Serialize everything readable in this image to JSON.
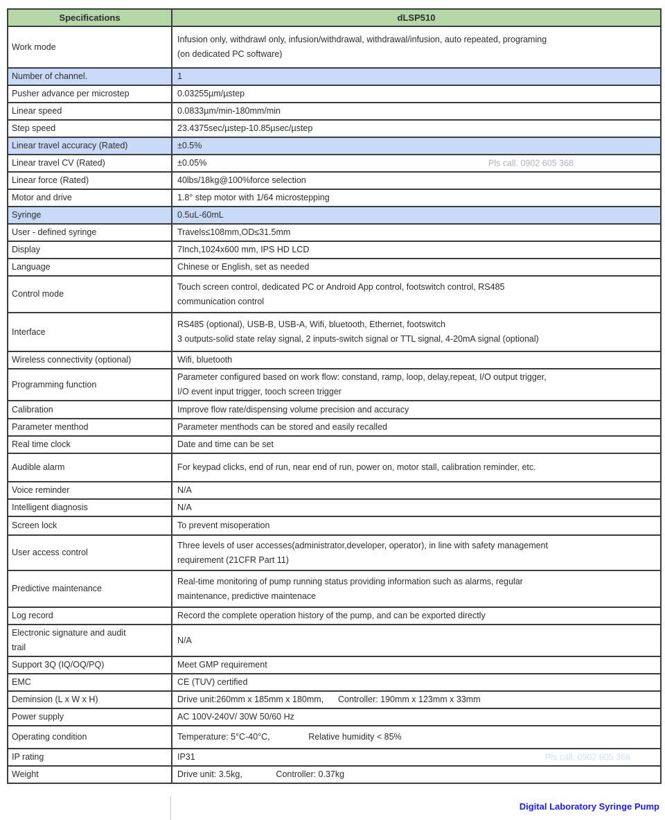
{
  "watermark_text": "Pls call. 0902 605 368",
  "footer": {
    "text": "Digital Laboratory Syringe Pump"
  },
  "colors": {
    "header_bg": "#b6d7a8",
    "highlight_bg": "#c9daf8",
    "border": "#3d3d3d",
    "text": "#2d2d2d",
    "footer_blue": "#1b1bf6",
    "watermark_gray": "#b2b2ba",
    "watermark_lightblue": "#cfe0f7"
  },
  "table": {
    "header": {
      "specifications": "Specifications",
      "model": "dLSP510"
    },
    "rows": [
      {
        "label": "Work mode",
        "value": "Infusion only, withdrawl only, infusion/withdrawal, withdrawal/infusion, auto repeated, programing\n(on dedicated PC software)",
        "highlight": false
      },
      {
        "label": "Number of channel.",
        "value": "1",
        "highlight": true
      },
      {
        "label": "Pusher advance per microstep",
        "value": "0.03255µm/µstep",
        "highlight": false
      },
      {
        "label": "Linear speed",
        "value": "0.0833µm/min-180mm/min",
        "highlight": false
      },
      {
        "label": "Step speed",
        "value": "23.4375sec/µstep-10.85µsec/µstep",
        "highlight": false
      },
      {
        "label": "Linear travel accuracy (Rated)",
        "value": "±0.5%",
        "highlight": true
      },
      {
        "label": "Linear travel CV (Rated)",
        "value": "±0.05%",
        "highlight": false,
        "watermark": "gray"
      },
      {
        "label": "Linear force (Rated)",
        "value": "40lbs/18kg@100%force selection",
        "highlight": false
      },
      {
        "label": "Motor and drive",
        "value": "1.8° step motor with 1/64 microstepping",
        "highlight": false
      },
      {
        "label": "Syringe",
        "value": "0.5uL-60mL",
        "highlight": true
      },
      {
        "label": "User - defined syringe",
        "value": "Travels≤108mm,OD≤31.5mm",
        "highlight": false
      },
      {
        "label": "Display",
        "value": "7Inch,1024x600 mm, IPS HD LCD",
        "highlight": false
      },
      {
        "label": "Language",
        "value": "Chinese or English, set as needed",
        "highlight": false
      },
      {
        "label": "Control mode",
        "value": "Touch screen control, dedicated PC or Android App control, footswitch control, RS485\ncommunication control",
        "highlight": false
      },
      {
        "label": "Interface",
        "value": "RS485 (optional), USB-B, USB-A, Wifi, bluetooth, Ethernet, footswitch\n3 outputs-solid state relay signal, 2 inputs-switch signal or TTL signal, 4-20mA signal (optional)",
        "highlight": false
      },
      {
        "label": "Wireless connectivity (optional)",
        "value": "Wifi, bluetooth",
        "highlight": false
      },
      {
        "label": "Programming function",
        "value": "Parameter configured based on work flow: constand, ramp, loop, delay,repeat, I/O output trigger,\nI/O event input trigger, tooch screen trigger",
        "highlight": false
      },
      {
        "label": "Calibration",
        "value": "Improve flow rate/dispensing volume precision and accuracy",
        "highlight": false
      },
      {
        "label": "Parameter menthod",
        "value": "Parameter menthods can be stored and easily recalled",
        "highlight": false
      },
      {
        "label": "Real time clock",
        "value": "Date and time can be set",
        "highlight": false
      },
      {
        "label": "Audible alarm",
        "value": "For keypad clicks, end of run, near end of run, power on, motor stall, calibration reminder, etc.",
        "highlight": false
      },
      {
        "label": "Voice reminder",
        "value": "N/A",
        "highlight": false
      },
      {
        "label": "Intelligent diagnosis",
        "value": "N/A",
        "highlight": false
      },
      {
        "label": "Screen lock",
        "value": "To prevent misoperation",
        "highlight": false
      },
      {
        "label": "User access control",
        "value": "Three levels of user accesses(administrator,developer, operator), in line with safety management\nrequirement (21CFR Part 11)",
        "highlight": false
      },
      {
        "label": "Predictive maintenance",
        "value": "Real-time monitoring of pump running status providing information such as alarms, regular\nmaintenance, predictive maintenace",
        "highlight": false
      },
      {
        "label": "Log record",
        "value": "Record the complete operation history of the pump, and can be exported directly",
        "highlight": false
      },
      {
        "label": "Electronic signature and audit\ntrail",
        "value": "N/A",
        "highlight": false
      },
      {
        "label": "Support 3Q (IQ/OQ/PQ)",
        "value": "Meet GMP requirement",
        "highlight": false
      },
      {
        "label": "EMC",
        "value": "CE (TUV) certified",
        "highlight": false
      },
      {
        "label": "Deminsion (L x W x H)",
        "value": "Drive unit:260mm x 185mm x 180mm,      Controller: 190mm x 123mm x 33mm",
        "highlight": false
      },
      {
        "label": "Power supply",
        "value": "AC 100V-240V/ 30W 50/60 Hz",
        "highlight": false
      },
      {
        "label": "Operating condition",
        "value": "Temperature: 5°C-40°C,                Relative humidity < 85%",
        "highlight": false
      },
      {
        "label": "IP rating",
        "value": "IP31",
        "highlight": false,
        "watermark": "lightblue"
      },
      {
        "label": "Weight",
        "value": "Drive unit: 3.5kg,              Controller: 0.37kg",
        "highlight": false
      }
    ]
  }
}
